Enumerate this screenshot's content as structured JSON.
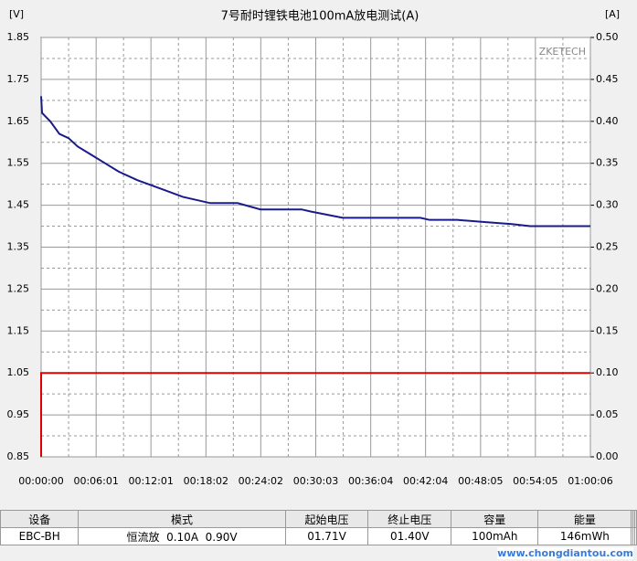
{
  "chart_data": {
    "type": "line",
    "title": "7号耐时锂铁电池100mA放电测试(A)",
    "ylabel": "[V]",
    "y2label": "[A]",
    "annotations": [
      "ZKETECH"
    ],
    "xlim": [
      0,
      3606
    ],
    "xticks": [
      {
        "value": 0,
        "label": "00:00:00"
      },
      {
        "value": 361,
        "label": "00:06:01"
      },
      {
        "value": 721,
        "label": "00:12:01"
      },
      {
        "value": 1082,
        "label": "00:18:02"
      },
      {
        "value": 1442,
        "label": "00:24:02"
      },
      {
        "value": 1803,
        "label": "00:30:03"
      },
      {
        "value": 2164,
        "label": "00:36:04"
      },
      {
        "value": 2524,
        "label": "00:42:04"
      },
      {
        "value": 2885,
        "label": "00:48:05"
      },
      {
        "value": 3245,
        "label": "00:54:05"
      },
      {
        "value": 3606,
        "label": "01:00:06"
      }
    ],
    "ylim": [
      0.85,
      1.85
    ],
    "yticks": [
      0.85,
      0.95,
      1.05,
      1.15,
      1.25,
      1.35,
      1.45,
      1.55,
      1.65,
      1.75,
      1.85
    ],
    "y2lim": [
      0,
      0.5
    ],
    "y2ticks": [
      {
        "value": 0,
        "label": "0.00"
      },
      0.05,
      {
        "value": 0.1,
        "label": "0.10"
      },
      0.15,
      {
        "value": 0.2,
        "label": "0.20"
      },
      0.25,
      {
        "value": 0.3,
        "label": "0.30"
      },
      0.35,
      {
        "value": 0.4,
        "label": "0.40"
      },
      0.45,
      {
        "value": 0.5,
        "label": "0.50"
      }
    ],
    "grid": true,
    "series": [
      {
        "color": "#1a1a8c",
        "x": [
          0,
          6,
          60,
          120,
          180,
          240,
          330,
          420,
          510,
          630,
          780,
          930,
          1110,
          1290,
          1440,
          1710,
          1770,
          1980,
          2490,
          2550,
          2730,
          2910,
          3090,
          3210,
          3606
        ],
        "values": [
          1.71,
          1.67,
          1.65,
          1.62,
          1.61,
          1.59,
          1.57,
          1.55,
          1.53,
          1.51,
          1.49,
          1.47,
          1.455,
          1.455,
          1.44,
          1.44,
          1.435,
          1.42,
          1.42,
          1.415,
          1.415,
          1.41,
          1.405,
          1.4,
          1.4
        ]
      },
      {
        "color": "#e00000",
        "axis": "y2",
        "x": [
          0,
          0,
          3606
        ],
        "values": [
          0,
          0.1,
          0.1
        ]
      }
    ]
  },
  "table": {
    "headers": [
      "设备",
      "模式",
      "起始电压",
      "终止电压",
      "容量",
      "能量"
    ],
    "rows": [
      [
        "EBC-BH",
        "恒流放  0.10A  0.90V",
        "01.71V",
        "01.40V",
        "100mAh",
        "146mWh"
      ]
    ]
  },
  "watermark": "www.chongdiantou.com"
}
